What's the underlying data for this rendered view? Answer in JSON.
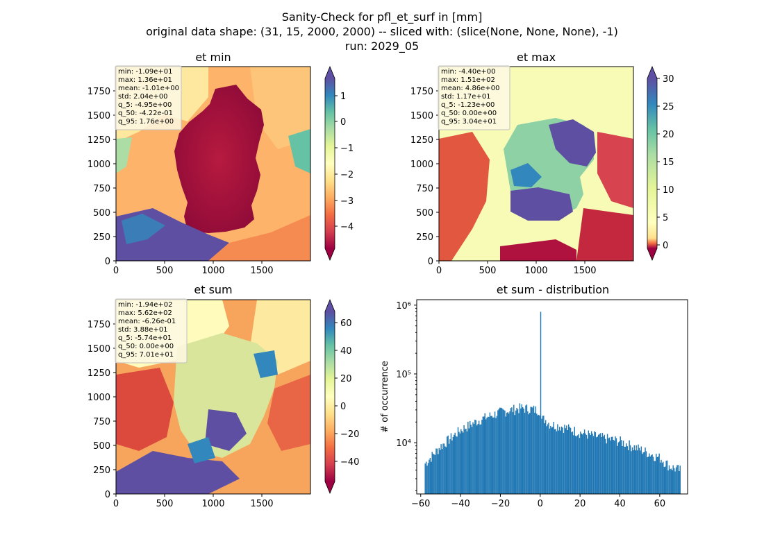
{
  "figure": {
    "suptitle": [
      "Sanity-Check for pfl_et_surf in [mm]",
      "original data shape: (31, 15, 2000, 2000) -- sliced with: (slice(None, None, None), -1)",
      "run: 2029_05"
    ]
  },
  "colors": {
    "spectral": [
      "#9e0142",
      "#d53e4f",
      "#f46d43",
      "#fdae61",
      "#fee08b",
      "#ffffbf",
      "#e6f598",
      "#abdda4",
      "#66c2a5",
      "#3288bd",
      "#5e4fa2"
    ],
    "hist_bar": "#1f77b4",
    "stats_box_bg": "#fdf8e4",
    "stats_box_border": "#c0c0c0"
  },
  "chart_data": [
    {
      "type": "heatmap",
      "title": "et min",
      "x_ticks": [
        "0",
        "500",
        "1000",
        "1500"
      ],
      "y_ticks": [
        "0",
        "250",
        "500",
        "750",
        "1000",
        "1250",
        "1500",
        "1750"
      ],
      "xlim": [
        0,
        2000
      ],
      "ylim": [
        0,
        2000
      ],
      "colormap": "Spectral",
      "colorbar": {
        "vmin": -5.0,
        "vmax": 1.8,
        "ticks": [
          1,
          0,
          -1,
          -2,
          -3,
          -4
        ],
        "tick_labels": [
          "1",
          "0",
          "−1",
          "−2",
          "−3",
          "−4"
        ],
        "extend": "both"
      },
      "stats": [
        "min: -1.09e+01",
        "max: 1.36e+01",
        "mean: -1.01e+00",
        "std: 2.04e+00",
        "q_5: -4.95e+00",
        "q_50: -4.22e-01",
        "q_95: 1.76e+00"
      ]
    },
    {
      "type": "heatmap",
      "title": "et max",
      "x_ticks": [
        "0",
        "500",
        "1000",
        "1500"
      ],
      "y_ticks": [
        "0",
        "250",
        "500",
        "750",
        "1000",
        "1250",
        "1500",
        "1750"
      ],
      "xlim": [
        0,
        2000
      ],
      "ylim": [
        0,
        2000
      ],
      "colormap": "Spectral",
      "colorbar": {
        "vmin": -1.2,
        "vmax": 31,
        "ticks": [
          30,
          25,
          20,
          15,
          10,
          5,
          0
        ],
        "tick_labels": [
          "30",
          "25",
          "20",
          "15",
          "10",
          "5",
          "0"
        ],
        "extend": "both"
      },
      "stats": [
        "min: -4.40e+00",
        "max: 1.51e+02",
        "mean: 4.86e+00",
        "std: 1.17e+01",
        "q_5: -1.23e+00",
        "q_50: 0.00e+00",
        "q_95: 3.04e+01"
      ]
    },
    {
      "type": "heatmap",
      "title": "et sum",
      "x_ticks": [
        "0",
        "500",
        "1000",
        "1500"
      ],
      "y_ticks": [
        "0",
        "250",
        "500",
        "750",
        "1000",
        "1250",
        "1500",
        "1750"
      ],
      "xlim": [
        0,
        2000
      ],
      "ylim": [
        0,
        2000
      ],
      "colormap": "Spectral",
      "colorbar": {
        "vmin": -57.4,
        "vmax": 70.1,
        "ticks": [
          60,
          40,
          20,
          0,
          -20,
          -40
        ],
        "tick_labels": [
          "60",
          "40",
          "20",
          "0",
          "−20",
          "−40"
        ],
        "extend": "both"
      },
      "stats": [
        "min: -1.94e+02",
        "max: 5.62e+02",
        "mean: -6.26e-01",
        "std: 3.88e+01",
        "q_5: -5.74e+01",
        "q_50: 0.00e+00",
        "q_95: 7.01e+01"
      ]
    },
    {
      "type": "bar",
      "title": "et sum - distribution",
      "ylabel": "# of occurrence",
      "xlabel": "",
      "yscale": "log",
      "xlim": [
        -62,
        74
      ],
      "ylim": [
        1800,
        1200000
      ],
      "x_ticks": [
        -60,
        -40,
        -20,
        0,
        20,
        40,
        60
      ],
      "x_tick_labels": [
        "−60",
        "−40",
        "−20",
        "0",
        "20",
        "40",
        "60"
      ],
      "y_ticks": [
        10000,
        100000,
        1000000
      ],
      "y_tick_labels": [
        "10⁴",
        "10⁵",
        "10⁶"
      ],
      "bin_width": 0.5,
      "x": [
        -58.0,
        -50.0,
        -40.0,
        -30.0,
        -20.0,
        -10.0,
        -5.0,
        -2.0,
        0.0,
        2.0,
        5.0,
        10.0,
        20.0,
        30.0,
        40.0,
        50.0,
        60.0,
        65.0,
        70.0
      ],
      "values": [
        5000,
        9000,
        15500,
        22000,
        28000,
        32000,
        31000,
        30000,
        800000,
        22000,
        18500,
        17500,
        14000,
        12000,
        10500,
        8000,
        6000,
        4500,
        4000
      ]
    }
  ]
}
